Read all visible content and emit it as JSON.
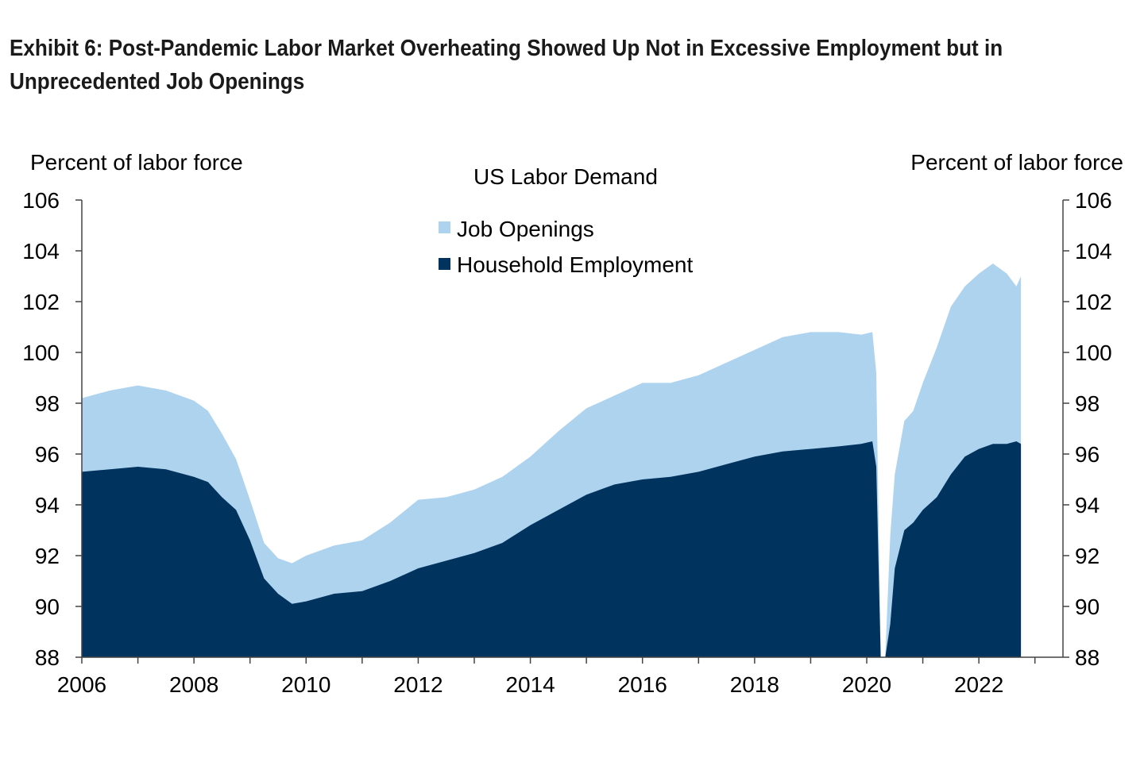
{
  "title": "Exhibit 6: Post-Pandemic Labor Market Overheating Showed Up Not in Excessive Employment but in Unprecedented Job Openings",
  "chart_data": {
    "type": "area",
    "subtitle": "US Labor Demand",
    "ylabel_left": "Percent of labor force",
    "ylabel_right": "Percent of labor force",
    "xlim": [
      2006,
      2023.5
    ],
    "ylim": [
      88,
      106
    ],
    "x_ticks": [
      "2006",
      "2008",
      "2010",
      "2012",
      "2014",
      "2016",
      "2018",
      "2020",
      "2022"
    ],
    "y_ticks": [
      "88",
      "90",
      "92",
      "94",
      "96",
      "98",
      "100",
      "102",
      "104",
      "106"
    ],
    "legend": {
      "placement": "top-center"
    },
    "colors": {
      "job_openings": "#aed3ef",
      "household_employment": "#00335e"
    },
    "x": [
      2006.0,
      2006.5,
      2007.0,
      2007.5,
      2008.0,
      2008.25,
      2008.5,
      2008.75,
      2009.0,
      2009.25,
      2009.5,
      2009.75,
      2010.0,
      2010.5,
      2011.0,
      2011.5,
      2012.0,
      2012.5,
      2013.0,
      2013.5,
      2014.0,
      2014.5,
      2015.0,
      2015.5,
      2016.0,
      2016.5,
      2017.0,
      2017.5,
      2018.0,
      2018.5,
      2019.0,
      2019.5,
      2019.9,
      2020.1,
      2020.17,
      2020.25,
      2020.33,
      2020.42,
      2020.5,
      2020.67,
      2020.83,
      2021.0,
      2021.25,
      2021.5,
      2021.75,
      2022.0,
      2022.25,
      2022.5,
      2022.67,
      2022.75
    ],
    "series": [
      {
        "name": "Job Openings",
        "values": [
          98.2,
          98.5,
          98.7,
          98.5,
          98.1,
          97.7,
          96.8,
          95.8,
          94.2,
          92.5,
          91.9,
          91.7,
          92.0,
          92.4,
          92.6,
          93.3,
          94.2,
          94.3,
          94.6,
          95.1,
          95.9,
          96.9,
          97.8,
          98.3,
          98.8,
          98.8,
          99.1,
          99.6,
          100.1,
          100.6,
          100.8,
          100.8,
          100.7,
          100.8,
          99.2,
          88.0,
          88.0,
          92.8,
          95.2,
          97.3,
          97.7,
          98.8,
          100.2,
          101.8,
          102.6,
          103.1,
          103.5,
          103.1,
          102.6,
          103.0
        ]
      },
      {
        "name": "Household Employment",
        "values": [
          95.3,
          95.4,
          95.5,
          95.4,
          95.1,
          94.9,
          94.3,
          93.8,
          92.6,
          91.1,
          90.5,
          90.1,
          90.2,
          90.5,
          90.6,
          91.0,
          91.5,
          91.8,
          92.1,
          92.5,
          93.2,
          93.8,
          94.4,
          94.8,
          95.0,
          95.1,
          95.3,
          95.6,
          95.9,
          96.1,
          96.2,
          96.3,
          96.4,
          96.5,
          95.5,
          88.0,
          88.0,
          89.3,
          91.5,
          93.0,
          93.3,
          93.8,
          94.3,
          95.2,
          95.9,
          96.2,
          96.4,
          96.4,
          96.5,
          96.4
        ]
      }
    ]
  }
}
